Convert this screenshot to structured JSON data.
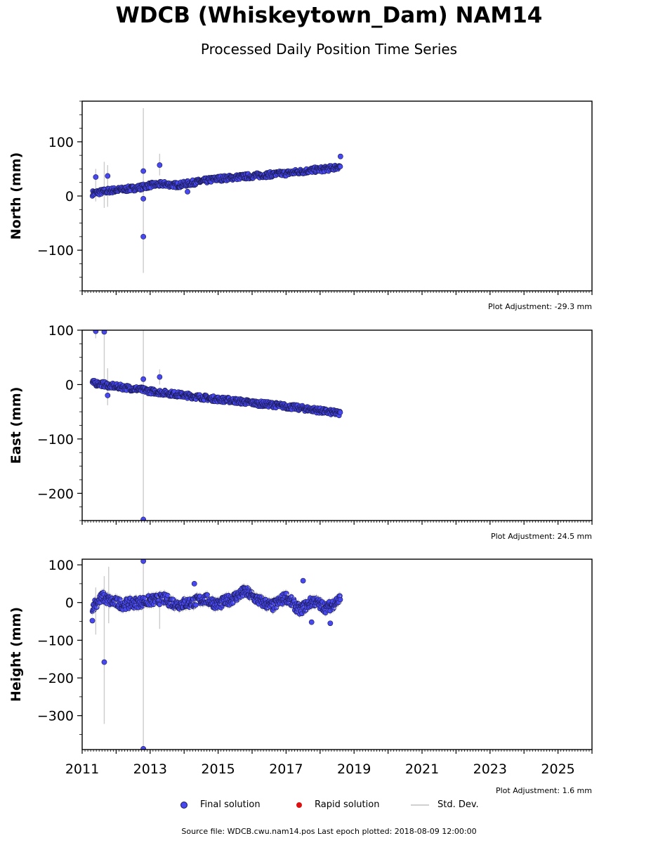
{
  "header": {
    "title": "WDCB (Whiskeytown_Dam) NAM14",
    "subtitle": "Processed Daily Position Time Series"
  },
  "colors": {
    "final": "#4848f0",
    "final_edge": "#1a1a50",
    "rapid": "#dd1111",
    "stddev": "#cccccc"
  },
  "legend": {
    "final": "Final solution",
    "rapid": "Rapid solution",
    "stddev": "Std. Dev."
  },
  "footer": {
    "text": "Source file: WDCB.cwu.nam14.pos  Last epoch plotted: 2018-08-09 12:00:00"
  },
  "chart_data": [
    {
      "type": "scatter",
      "ylabel": "North (mm)",
      "adjustment": "Plot Adjustment: -29.3 mm",
      "xlim": [
        2011.0,
        2026.0
      ],
      "ylim": [
        -175,
        175
      ],
      "yticks": [
        -100,
        0,
        100
      ],
      "xticks": [
        "2011",
        "2013",
        "2015",
        "2017",
        "2019",
        "2021",
        "2023",
        "2025"
      ],
      "show_xtick_labels": false,
      "series": [
        {
          "name": "Final solution",
          "trend": [
            [
              2011.2,
              5
            ],
            [
              2018.6,
              53
            ]
          ],
          "x": [
            2011.3,
            2011.6,
            2011.8,
            2012.2,
            2012.6,
            2012.8,
            2013.0,
            2013.4,
            2013.8,
            2014.2,
            2014.6,
            2015.0,
            2015.4,
            2015.8,
            2016.2,
            2016.6,
            2017.0,
            2017.4,
            2017.8,
            2018.2,
            2018.6
          ],
          "y": [
            5,
            8,
            10,
            12,
            15,
            17,
            20,
            22,
            20,
            24,
            28,
            32,
            34,
            36,
            38,
            40,
            42,
            45,
            48,
            50,
            55
          ]
        }
      ],
      "outliers": {
        "x": [
          2011.4,
          2011.75,
          2012.8,
          2012.8,
          2012.8,
          2013.28,
          2014.1,
          2018.6
        ],
        "y": [
          35,
          37,
          46,
          -5,
          -75,
          57,
          8,
          73
        ]
      },
      "errorbars": [
        {
          "x": 2011.4,
          "low": -10,
          "high": 50
        },
        {
          "x": 2011.65,
          "low": -22,
          "high": 63
        },
        {
          "x": 2011.75,
          "low": -20,
          "high": 57
        },
        {
          "x": 2012.8,
          "low": -142,
          "high": 162
        },
        {
          "x": 2013.28,
          "low": 38,
          "high": 78
        }
      ]
    },
    {
      "type": "scatter",
      "ylabel": "East (mm)",
      "adjustment": "Plot Adjustment: 24.5 mm",
      "xlim": [
        2011.0,
        2026.0
      ],
      "ylim": [
        -250,
        100
      ],
      "yticks": [
        -200,
        -100,
        0,
        100
      ],
      "xticks": [
        "2011",
        "2013",
        "2015",
        "2017",
        "2019",
        "2021",
        "2023",
        "2025"
      ],
      "show_xtick_labels": false,
      "series": [
        {
          "name": "Final solution",
          "trend": [
            [
              2011.2,
              3
            ],
            [
              2018.6,
              -53
            ]
          ],
          "x": [
            2011.3,
            2011.6,
            2011.8,
            2012.2,
            2012.6,
            2013.0,
            2013.4,
            2013.8,
            2014.2,
            2014.6,
            2015.0,
            2015.4,
            2015.8,
            2016.2,
            2016.6,
            2017.0,
            2017.4,
            2017.8,
            2018.2,
            2018.6
          ],
          "y": [
            3,
            1,
            -2,
            -5,
            -8,
            -12,
            -15,
            -18,
            -21,
            -24,
            -27,
            -29,
            -32,
            -35,
            -37,
            -40,
            -43,
            -46,
            -50,
            -53
          ]
        }
      ],
      "outliers": {
        "x": [
          2011.4,
          2011.65,
          2011.75,
          2012.8,
          2012.8,
          2013.28
        ],
        "y": [
          98,
          97,
          -20,
          10,
          -248,
          14
        ]
      },
      "errorbars": [
        {
          "x": 2011.4,
          "low": 85,
          "high": 100
        },
        {
          "x": 2011.65,
          "low": -5,
          "high": 100
        },
        {
          "x": 2011.75,
          "low": -38,
          "high": 30
        },
        {
          "x": 2012.8,
          "low": -250,
          "high": 100
        },
        {
          "x": 2013.28,
          "low": 0,
          "high": 28
        }
      ]
    },
    {
      "type": "scatter",
      "ylabel": "Height (mm)",
      "adjustment": "Plot Adjustment: 1.6 mm",
      "xlim": [
        2011.0,
        2026.0
      ],
      "ylim": [
        -390,
        115
      ],
      "yticks": [
        -300,
        -200,
        -100,
        0,
        100
      ],
      "xticks": [
        "2011",
        "2013",
        "2015",
        "2017",
        "2019",
        "2021",
        "2023",
        "2025"
      ],
      "show_xtick_labels": true,
      "series": [
        {
          "name": "Final solution",
          "trend": [
            [
              2011.2,
              0
            ],
            [
              2018.6,
              0
            ]
          ],
          "x": [
            2011.3,
            2011.6,
            2011.8,
            2012.2,
            2012.6,
            2013.0,
            2013.4,
            2013.8,
            2014.2,
            2014.6,
            2015.0,
            2015.4,
            2015.8,
            2016.2,
            2016.6,
            2017.0,
            2017.4,
            2017.8,
            2018.2,
            2018.6
          ],
          "y": [
            -10,
            15,
            5,
            -5,
            0,
            5,
            10,
            -5,
            0,
            10,
            -5,
            10,
            30,
            5,
            -10,
            15,
            -20,
            5,
            -15,
            10
          ]
        }
      ],
      "outliers": {
        "x": [
          2011.3,
          2011.65,
          2012.8,
          2012.8,
          2017.5,
          2017.75,
          2018.3,
          2014.3
        ],
        "y": [
          -48,
          -158,
          110,
          -388,
          58,
          -52,
          -55,
          50
        ]
      },
      "errorbars": [
        {
          "x": 2011.4,
          "low": -85,
          "high": 40
        },
        {
          "x": 2011.65,
          "low": -322,
          "high": 70
        },
        {
          "x": 2011.78,
          "low": -55,
          "high": 95
        },
        {
          "x": 2012.8,
          "low": -390,
          "high": 115
        },
        {
          "x": 2013.28,
          "low": -70,
          "high": 30
        }
      ]
    }
  ]
}
